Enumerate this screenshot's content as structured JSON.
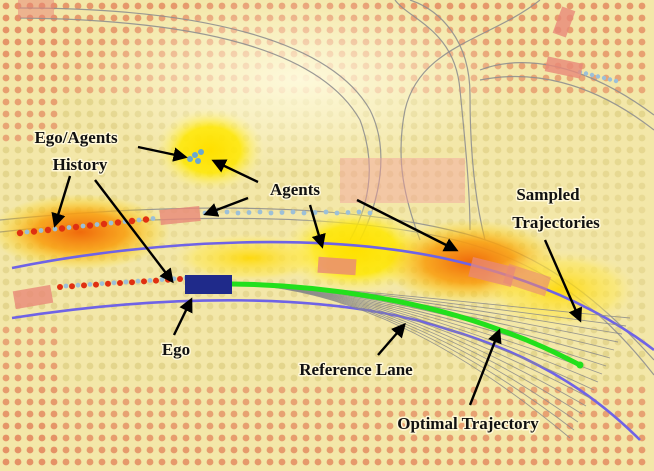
{
  "labels": {
    "history_line1": "Ego/Agents",
    "history_line2": "History",
    "agents": "Agents",
    "sampled_line1": "Sampled",
    "sampled_line2": "Trajectories",
    "ego": "Ego",
    "reference_lane": "Reference Lane",
    "optimal_trajectory": "Optimal Trajectory"
  },
  "colors": {
    "background": "#f3e7a8",
    "ego_vehicle": "#1f2a8a",
    "optimal_trajectory": "#22e01c",
    "reference_lane": "#6f63e6",
    "sampled_trajectories": "#8a8a8a",
    "agent_vehicle": "#e88878",
    "history_dot": "#e03010",
    "history_dot_light": "#9cc0d8",
    "heat_high": "#f27a12",
    "heat_mid": "#ffe400",
    "grid_dot_warm": "#e2835a",
    "grid_dot_cool": "#d9c97a"
  }
}
